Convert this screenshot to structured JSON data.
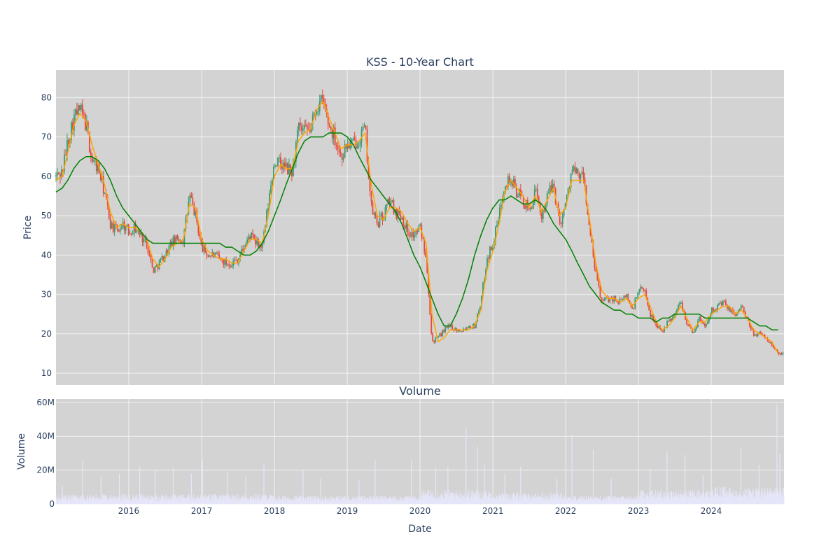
{
  "chart_data": [
    {
      "type": "candlestick",
      "title": "KSS - 10-Year Chart",
      "ylabel": "Price",
      "xlim": [
        "2015-01-01",
        "2024-12-31"
      ],
      "ylim": [
        7,
        87
      ],
      "y_ticks": [
        10,
        20,
        30,
        40,
        50,
        60,
        70,
        80
      ],
      "grid": true,
      "colors": {
        "up": "#3d9970",
        "down": "#e8483b",
        "ma_short": "#ffa500",
        "ma_long": "#008000",
        "plot_bg": "#d3d3d3",
        "grid": "#f2f2f2"
      },
      "series": [
        {
          "kind": "ohlc-path",
          "note_price_path_dates": [
            "2015-01-01",
            "2015-02-01",
            "2015-03-01",
            "2015-04-01",
            "2015-05-01",
            "2015-06-01",
            "2015-07-01",
            "2015-08-01",
            "2015-09-01",
            "2015-10-01",
            "2015-11-01",
            "2015-12-01",
            "2016-01-01",
            "2016-02-01",
            "2016-03-01",
            "2016-04-01",
            "2016-05-01",
            "2016-06-01",
            "2016-07-01",
            "2016-08-01",
            "2016-09-01",
            "2016-10-01",
            "2016-11-01",
            "2016-12-01",
            "2017-01-01",
            "2017-02-01",
            "2017-03-01",
            "2017-04-01",
            "2017-05-01",
            "2017-06-01",
            "2017-07-01",
            "2017-08-01",
            "2017-09-01",
            "2017-10-01",
            "2017-11-01",
            "2017-12-01",
            "2018-01-01",
            "2018-02-01",
            "2018-03-01",
            "2018-04-01",
            "2018-05-01",
            "2018-06-01",
            "2018-07-01",
            "2018-08-01",
            "2018-09-01",
            "2018-10-01",
            "2018-11-01",
            "2018-12-01",
            "2019-01-01",
            "2019-02-01",
            "2019-03-01",
            "2019-04-01",
            "2019-05-01",
            "2019-06-01",
            "2019-07-01",
            "2019-08-01",
            "2019-09-01",
            "2019-10-01",
            "2019-11-01",
            "2019-12-01",
            "2020-01-01",
            "2020-02-01",
            "2020-03-01",
            "2020-04-01",
            "2020-05-01",
            "2020-06-01",
            "2020-07-01",
            "2020-08-01",
            "2020-09-01",
            "2020-10-01",
            "2020-11-01",
            "2020-12-01",
            "2021-01-01",
            "2021-02-01",
            "2021-03-01",
            "2021-04-01",
            "2021-05-01",
            "2021-06-01",
            "2021-07-01",
            "2021-08-01",
            "2021-09-01",
            "2021-10-01",
            "2021-11-01",
            "2021-12-01",
            "2022-01-01",
            "2022-02-01",
            "2022-03-01",
            "2022-04-01",
            "2022-05-01",
            "2022-06-01",
            "2022-07-01",
            "2022-08-01",
            "2022-09-01",
            "2022-10-01",
            "2022-11-01",
            "2022-12-01",
            "2023-01-01",
            "2023-02-01",
            "2023-03-01",
            "2023-04-01",
            "2023-05-01",
            "2023-06-01",
            "2023-07-01",
            "2023-08-01",
            "2023-09-01",
            "2023-10-01",
            "2023-11-01",
            "2023-12-01",
            "2024-01-01",
            "2024-02-01",
            "2024-03-01",
            "2024-04-01",
            "2024-05-01",
            "2024-06-01",
            "2024-07-01",
            "2024-08-01",
            "2024-09-01",
            "2024-10-01",
            "2024-11-01",
            "2024-12-01"
          ],
          "close": [
            60,
            61,
            69,
            75,
            77,
            73,
            64,
            62,
            56,
            48,
            46,
            48,
            46,
            47,
            45,
            43,
            36,
            38,
            40,
            43,
            44,
            44,
            55,
            50,
            42,
            40,
            40,
            39,
            38,
            38,
            39,
            42,
            45,
            43,
            42,
            53,
            64,
            63,
            62,
            61,
            72,
            71,
            72,
            78,
            79,
            73,
            70,
            65,
            68,
            68,
            70,
            72,
            52,
            48,
            50,
            54,
            51,
            50,
            46,
            45,
            47,
            40,
            18,
            19,
            21,
            22,
            21,
            21,
            22,
            22,
            28,
            39,
            43,
            50,
            59,
            59,
            56,
            54,
            51,
            56,
            50,
            55,
            58,
            48,
            53,
            62,
            60,
            60,
            46,
            35,
            28,
            29,
            29,
            28,
            30,
            26,
            31,
            31,
            25,
            22,
            21,
            23,
            25,
            28,
            23,
            20,
            24,
            22,
            26,
            27,
            28,
            26,
            25,
            27,
            23,
            20,
            20,
            19,
            17,
            15
          ]
        },
        {
          "name": "",
          "kind": "moving-average-short",
          "values": [
            59,
            60,
            66,
            73,
            76,
            74,
            68,
            63,
            58,
            51,
            47,
            48,
            47,
            47,
            46,
            44,
            39,
            37,
            39,
            42,
            43,
            44,
            53,
            52,
            44,
            41,
            40,
            39,
            39,
            38,
            38,
            41,
            44,
            44,
            43,
            50,
            60,
            63,
            62,
            62,
            69,
            71,
            72,
            77,
            79,
            75,
            71,
            67,
            68,
            68,
            69,
            71,
            58,
            50,
            49,
            52,
            52,
            51,
            48,
            46,
            47,
            43,
            25,
            18,
            19,
            21,
            21,
            21,
            21,
            22,
            26,
            36,
            41,
            48,
            56,
            59,
            57,
            55,
            52,
            55,
            51,
            54,
            57,
            50,
            52,
            59,
            59,
            59,
            49,
            38,
            31,
            29,
            29,
            28,
            29,
            27,
            29,
            30,
            27,
            23,
            21,
            22,
            24,
            27,
            24,
            21,
            23,
            23,
            25,
            26,
            27,
            27,
            25,
            26,
            24,
            21,
            20,
            19,
            18,
            15
          ]
        },
        {
          "name": "",
          "kind": "moving-average-long",
          "values": [
            56,
            57,
            59,
            62,
            64,
            65,
            65,
            64,
            62,
            59,
            55,
            52,
            50,
            48,
            46,
            44,
            43,
            43,
            43,
            43,
            43,
            43,
            43,
            43,
            43,
            43,
            43,
            43,
            42,
            42,
            41,
            40,
            40,
            41,
            43,
            46,
            50,
            54,
            58,
            62,
            66,
            69,
            70,
            70,
            70,
            71,
            71,
            71,
            70,
            68,
            65,
            62,
            59,
            57,
            55,
            53,
            51,
            48,
            44,
            40,
            37,
            33,
            29,
            25,
            22,
            22,
            25,
            29,
            34,
            40,
            45,
            49,
            52,
            54,
            54,
            55,
            54,
            53,
            53,
            54,
            53,
            51,
            48,
            46,
            44,
            41,
            38,
            35,
            32,
            30,
            28,
            27,
            26,
            26,
            25,
            25,
            24,
            24,
            24,
            23,
            24,
            24,
            25,
            25,
            25,
            25,
            25,
            24,
            24,
            24,
            24,
            24,
            24,
            24,
            24,
            23,
            22,
            22,
            21,
            21
          ]
        }
      ]
    },
    {
      "type": "bar",
      "title": "Volume",
      "ylabel": "Volume",
      "xlabel": "Date",
      "xlim": [
        "2015-01-01",
        "2024-12-31"
      ],
      "ylim": [
        0,
        62000000
      ],
      "y_ticks": [
        0,
        20000000,
        40000000,
        60000000
      ],
      "y_tick_labels": [
        "0",
        "20M",
        "40M",
        "60M"
      ],
      "x_ticks": [
        "2016-01-01",
        "2017-01-01",
        "2018-01-01",
        "2019-01-01",
        "2020-01-01",
        "2021-01-01",
        "2022-01-01",
        "2023-01-01",
        "2024-01-01"
      ],
      "x_tick_labels": [
        "2016",
        "2017",
        "2018",
        "2019",
        "2020",
        "2021",
        "2022",
        "2023",
        "2024"
      ],
      "bar_color": "#e6e6fa",
      "grid": true,
      "baseline_level_by_year": [
        3500000,
        3500000,
        3500000,
        3000000,
        3000000,
        5000000,
        4000000,
        3000000,
        5000000,
        6000000
      ],
      "spikes": [
        {
          "date": "2015-02-01",
          "value": 11000000
        },
        {
          "date": "2015-05-15",
          "value": 25000000
        },
        {
          "date": "2015-08-15",
          "value": 16000000
        },
        {
          "date": "2015-11-15",
          "value": 18000000
        },
        {
          "date": "2016-02-25",
          "value": 22000000
        },
        {
          "date": "2016-05-12",
          "value": 20000000
        },
        {
          "date": "2016-08-11",
          "value": 22000000
        },
        {
          "date": "2016-11-10",
          "value": 18000000
        },
        {
          "date": "2017-01-05",
          "value": 26000000
        },
        {
          "date": "2017-05-11",
          "value": 19000000
        },
        {
          "date": "2017-08-10",
          "value": 16000000
        },
        {
          "date": "2017-11-09",
          "value": 24000000
        },
        {
          "date": "2018-05-24",
          "value": 20000000
        },
        {
          "date": "2018-08-21",
          "value": 15000000
        },
        {
          "date": "2019-03-01",
          "value": 14000000
        },
        {
          "date": "2019-05-21",
          "value": 26000000
        },
        {
          "date": "2019-11-19",
          "value": 26000000
        },
        {
          "date": "2020-03-20",
          "value": 22000000
        },
        {
          "date": "2020-05-20",
          "value": 22000000
        },
        {
          "date": "2020-08-19",
          "value": 45000000
        },
        {
          "date": "2020-10-15",
          "value": 34000000
        },
        {
          "date": "2020-11-19",
          "value": 24000000
        },
        {
          "date": "2021-03-02",
          "value": 18000000
        },
        {
          "date": "2021-05-20",
          "value": 22000000
        },
        {
          "date": "2021-11-18",
          "value": 15000000
        },
        {
          "date": "2022-02-01",
          "value": 41000000
        },
        {
          "date": "2022-05-19",
          "value": 32000000
        },
        {
          "date": "2022-08-17",
          "value": 15000000
        },
        {
          "date": "2023-03-01",
          "value": 21000000
        },
        {
          "date": "2023-05-24",
          "value": 31000000
        },
        {
          "date": "2023-08-23",
          "value": 29000000
        },
        {
          "date": "2023-11-21",
          "value": 17000000
        },
        {
          "date": "2024-05-29",
          "value": 33000000
        },
        {
          "date": "2024-08-28",
          "value": 23000000
        },
        {
          "date": "2024-11-26",
          "value": 59000000
        },
        {
          "date": "2024-12-10",
          "value": 30000000
        }
      ]
    }
  ]
}
